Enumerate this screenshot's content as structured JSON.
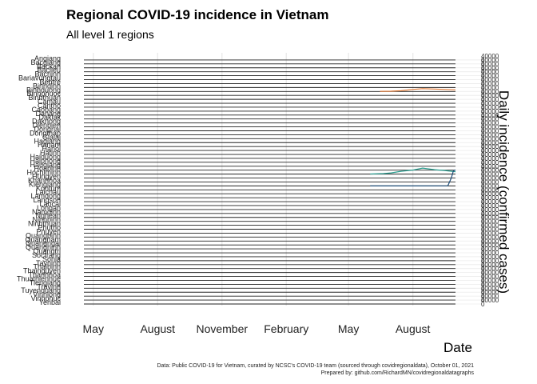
{
  "chart_data": {
    "type": "line",
    "title": "Regional COVID-19 incidence in Vietnam",
    "subtitle": "All level 1 regions",
    "xlabel": "Date",
    "ylabel": "Daily incidence (confirmed cases)",
    "x_ticks": [
      "May",
      "August",
      "November",
      "February",
      "May",
      "August"
    ],
    "x_tick_dates": [
      "2020-05-01",
      "2020-08-01",
      "2020-11-01",
      "2021-02-01",
      "2021-05-01",
      "2021-08-01"
    ],
    "xlim": [
      "2020-03-20",
      "2021-10-01"
    ],
    "ylim": [
      0,
      40000
    ],
    "y_tick_labels": [
      "0",
      "40000"
    ],
    "grid": true,
    "facet_layout": "stacked rows, one panel per region, shared x axis",
    "regions": [
      "Angiang",
      "Bacgiang",
      "Backan",
      "Baclieu",
      "Bacninh",
      "Bariavungtau",
      "Bentre",
      "Binhdinh",
      "Binhduong",
      "Binhphuoc",
      "Binhthuan",
      "Camau",
      "Cantho",
      "Caobang",
      "Danang",
      "Daklak",
      "Daknong",
      "Dienbien",
      "Dongnai",
      "Dongthap",
      "Gialai",
      "Hagiang",
      "Hanam",
      "Hanoi",
      "Hatinh",
      "Haiduong",
      "Haiphong",
      "Haugiang",
      "Hoabinh",
      "Hochiminh",
      "Hungyen",
      "Khanhhoa",
      "Kiengiang",
      "Kontum",
      "Laichau",
      "Lamdong",
      "Langson",
      "Laocai",
      "Longan",
      "Namdinh",
      "Nghean",
      "Ninhbinh",
      "Ninhthuan",
      "Phutho",
      "Phuyen",
      "Quangbinh",
      "Quangnam",
      "Quangngai",
      "Quangninh",
      "Quangtri",
      "Soctrang",
      "Sonla",
      "Tayninh",
      "Thaibinh",
      "Thainguyen",
      "Thanhhoa",
      "Thuathienhue",
      "Tiengiang",
      "Travinh",
      "Tuyenquang",
      "Vinhlong",
      "Vinhphuc",
      "Yenbai"
    ],
    "series": [
      {
        "name": "Binhduong",
        "color": "#e07b39",
        "x": [
          "2021-06-15",
          "2021-07-01",
          "2021-07-15",
          "2021-08-01",
          "2021-08-15",
          "2021-09-01",
          "2021-09-15",
          "2021-10-01"
        ],
        "y": [
          50,
          300,
          900,
          2500,
          3500,
          3000,
          2500,
          2000
        ]
      },
      {
        "name": "Hochiminh",
        "color": "#2a9d8f",
        "x": [
          "2021-06-01",
          "2021-06-20",
          "2021-07-01",
          "2021-07-15",
          "2021-08-01",
          "2021-08-15",
          "2021-09-01",
          "2021-09-15",
          "2021-10-01"
        ],
        "y": [
          100,
          600,
          1500,
          3500,
          5000,
          7500,
          5500,
          4500,
          3000
        ]
      },
      {
        "name": "Kiengiang",
        "color": "#1f4e79",
        "x": [
          "2021-06-01",
          "2021-08-01",
          "2021-09-20",
          "2021-09-25",
          "2021-09-28",
          "2021-10-01"
        ],
        "y": [
          0,
          50,
          200,
          20000,
          38000,
          40000
        ]
      }
    ]
  },
  "caption_lines": [
    "Data: Public COVID-19 for Vietnam, curated by NCSC's COVID-19 team (sourced through covidregionaldata), October 01, 2021",
    "Prepared by: github.com/RichardMN/covidregionaldatagraphs"
  ],
  "colors": {
    "row_line": "#222222",
    "grid": "#ebebeb",
    "background": "#ffffff"
  }
}
